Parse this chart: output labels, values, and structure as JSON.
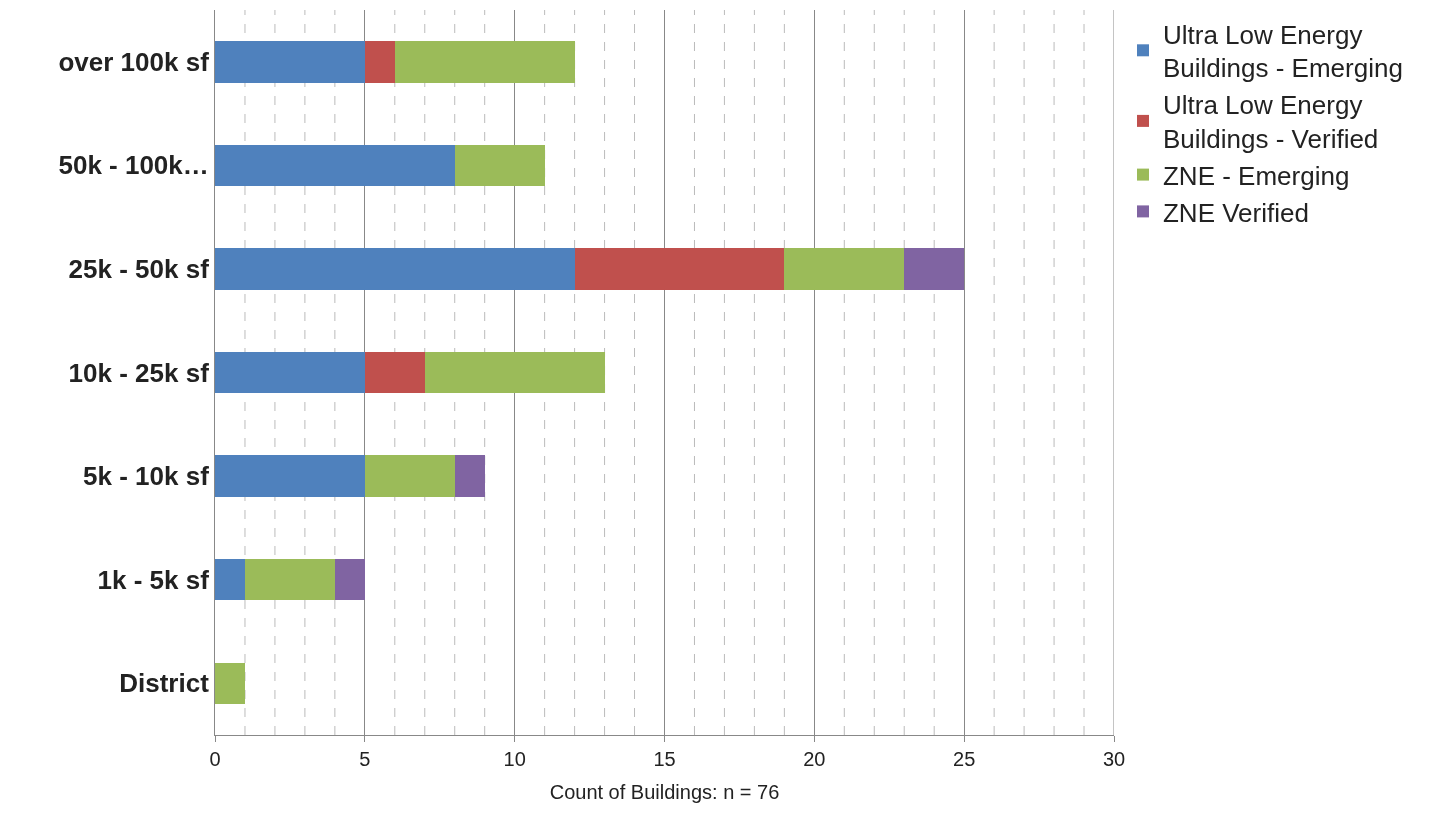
{
  "chart_data": {
    "type": "bar",
    "orientation": "horizontal",
    "stacked": true,
    "xlabel": "Count of Buildings: n = 76",
    "categories": [
      "over 100k sf",
      "50k - 100k…",
      "25k - 50k sf",
      "10k - 25k sf",
      "5k - 10k sf",
      "1k - 5k sf",
      "District"
    ],
    "series": [
      {
        "name": "Ultra Low Energy Buildings - Emerging",
        "color": "#4f81bd",
        "values": [
          5,
          8,
          12,
          5,
          5,
          1,
          0
        ]
      },
      {
        "name": "Ultra Low Energy Buildings - Verified",
        "color": "#c0504d",
        "values": [
          1,
          0,
          7,
          2,
          0,
          0,
          0
        ]
      },
      {
        "name": "ZNE - Emerging",
        "color": "#9bbb59",
        "values": [
          6,
          3,
          4,
          6,
          3,
          3,
          1
        ]
      },
      {
        "name": "ZNE Verified",
        "color": "#8064a2",
        "values": [
          0,
          0,
          2,
          0,
          1,
          1,
          0
        ]
      }
    ],
    "xlim": [
      0,
      30
    ],
    "xticks": [
      0,
      {
        "value": 1,
        "label": null
      },
      {
        "value": 2,
        "label": null
      },
      {
        "value": 3,
        "label": null
      },
      {
        "value": 4,
        "label": null
      },
      5,
      {
        "value": 6,
        "label": null
      },
      {
        "value": 7,
        "label": null
      },
      {
        "value": 8,
        "label": null
      },
      {
        "value": 9,
        "label": null
      },
      10,
      {
        "value": 11,
        "label": null
      },
      {
        "value": 12,
        "label": null
      },
      {
        "value": 13,
        "label": null
      },
      {
        "value": 14,
        "label": null
      },
      15,
      {
        "value": 16,
        "label": null
      },
      {
        "value": 17,
        "label": null
      },
      {
        "value": 18,
        "label": null
      },
      {
        "value": 19,
        "label": null
      },
      20,
      {
        "value": 21,
        "label": null
      },
      {
        "value": 22,
        "label": null
      },
      {
        "value": 23,
        "label": null
      },
      {
        "value": 24,
        "label": null
      },
      25,
      {
        "value": 26,
        "label": null
      },
      {
        "value": 27,
        "label": null
      },
      {
        "value": 28,
        "label": null
      },
      {
        "value": 29,
        "label": null
      },
      30
    ],
    "grid": "x",
    "legend": "right"
  }
}
